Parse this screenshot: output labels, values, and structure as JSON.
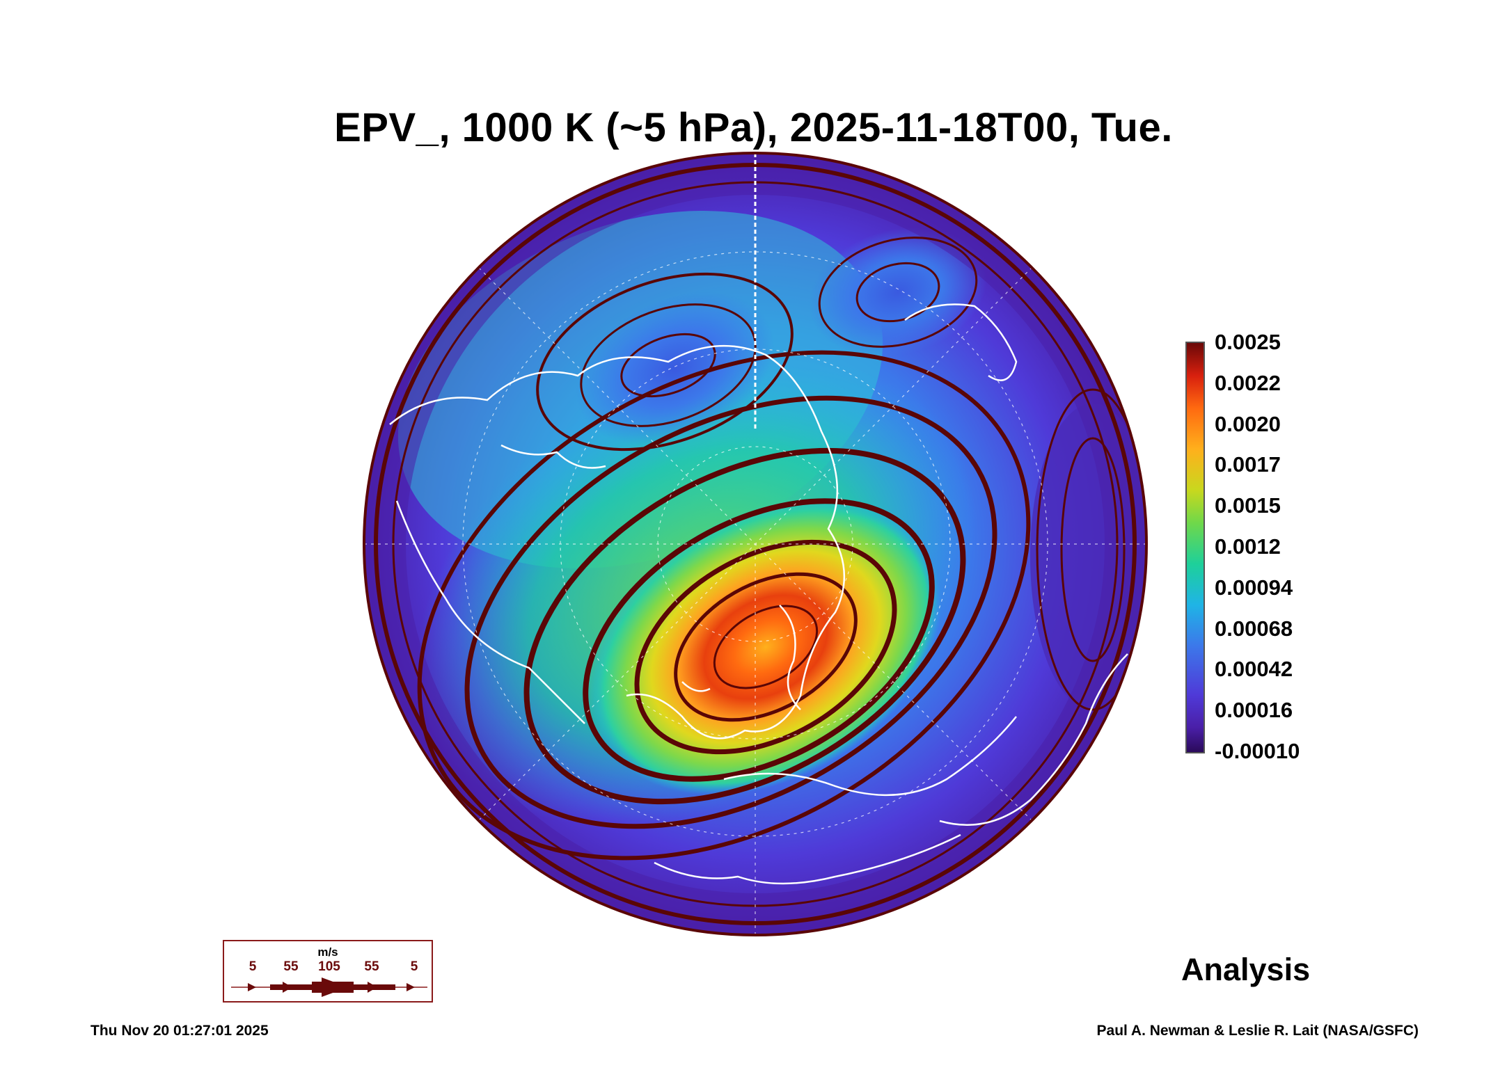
{
  "title": "EPV_, 1000 K (~5 hPa), 2025-11-18T00, Tue.",
  "colorbar": {
    "labels": [
      "0.0025",
      "0.0022",
      "0.0020",
      "0.0017",
      "0.0015",
      "0.0012",
      "0.00094",
      "0.00068",
      "0.00042",
      "0.00016",
      "-0.00010"
    ],
    "min": -0.0001,
    "max": 0.0025,
    "colors": [
      "#2a0a5a",
      "#4a1fa8",
      "#4f3ad8",
      "#3c78ea",
      "#1fb4e6",
      "#1ed09a",
      "#6fd84a",
      "#c8d81e",
      "#ffb01c",
      "#ff6a10",
      "#d8200e",
      "#6a0808"
    ]
  },
  "wind_legend": {
    "unit": "m/s",
    "values": [
      "5",
      "55",
      "105",
      "55",
      "5"
    ],
    "color": "#6a0a0a"
  },
  "label": "Analysis",
  "timestamp": "Thu Nov 20 01:27:01 2025",
  "credit": "Paul A. Newman & Leslie R. Lait (NASA/GSFC)"
}
